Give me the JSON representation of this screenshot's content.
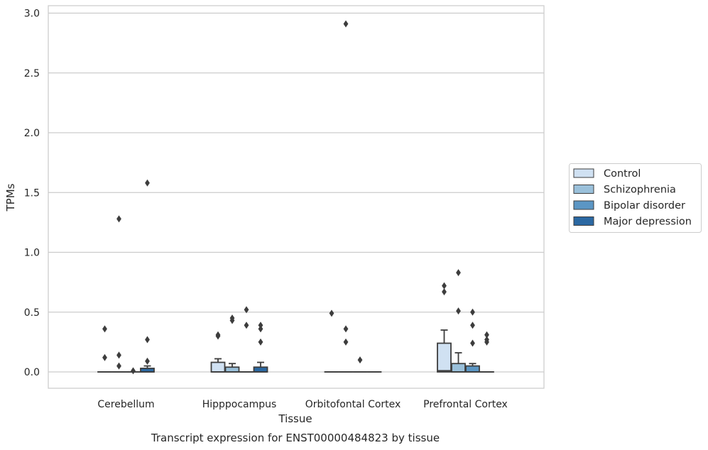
{
  "chart_data": {
    "type": "box",
    "title": "Transcript expression for ENST00000484823 by tissue",
    "xlabel": "Tissue",
    "ylabel": "TPMs",
    "ylim": [
      -0.14,
      3.05
    ],
    "yticks": [
      "0.0",
      "0.5",
      "1.0",
      "1.5",
      "2.0",
      "2.5",
      "3.0"
    ],
    "grid": true,
    "legend_position": "right",
    "categories": [
      "Cerebellum",
      "Hipppocampus",
      "Orbitofontal Cortex",
      "Prefrontal Cortex"
    ],
    "series": [
      {
        "name": "Control",
        "color": "#d0e1f2",
        "boxes": [
          {
            "q1": 0,
            "median": 0,
            "q3": 0,
            "whisker_low": 0,
            "whisker_high": 0,
            "outliers": [
              0.36,
              0.12
            ]
          },
          {
            "q1": 0,
            "median": 0,
            "q3": 0.08,
            "whisker_low": 0,
            "whisker_high": 0.11,
            "outliers": [
              0.31,
              0.3
            ]
          },
          {
            "q1": 0,
            "median": 0,
            "q3": 0,
            "whisker_low": 0,
            "whisker_high": 0,
            "outliers": [
              0.49
            ]
          },
          {
            "q1": 0,
            "median": 0.01,
            "q3": 0.24,
            "whisker_low": 0,
            "whisker_high": 0.35,
            "outliers": [
              0.72,
              0.67
            ]
          }
        ]
      },
      {
        "name": "Schizophrenia",
        "color": "#9ac0da",
        "boxes": [
          {
            "q1": 0,
            "median": 0,
            "q3": 0,
            "whisker_low": 0,
            "whisker_high": 0,
            "outliers": [
              1.28,
              0.14,
              0.05
            ]
          },
          {
            "q1": 0,
            "median": 0,
            "q3": 0.04,
            "whisker_low": 0,
            "whisker_high": 0.07,
            "outliers": [
              0.45,
              0.43
            ]
          },
          {
            "q1": 0,
            "median": 0,
            "q3": 0,
            "whisker_low": 0,
            "whisker_high": 0,
            "outliers": [
              2.91,
              0.36,
              0.25
            ]
          },
          {
            "q1": 0,
            "median": 0,
            "q3": 0.07,
            "whisker_low": 0,
            "whisker_high": 0.16,
            "outliers": [
              0.83,
              0.51
            ]
          }
        ]
      },
      {
        "name": "Bipolar disorder",
        "color": "#5b96c4",
        "boxes": [
          {
            "q1": 0,
            "median": 0,
            "q3": 0,
            "whisker_low": 0,
            "whisker_high": 0,
            "outliers": [
              0.01
            ]
          },
          {
            "q1": 0,
            "median": 0,
            "q3": 0,
            "whisker_low": 0,
            "whisker_high": 0,
            "outliers": [
              0.52,
              0.39
            ]
          },
          {
            "q1": 0,
            "median": 0,
            "q3": 0,
            "whisker_low": 0,
            "whisker_high": 0,
            "outliers": [
              0.1
            ]
          },
          {
            "q1": 0,
            "median": 0,
            "q3": 0.05,
            "whisker_low": 0,
            "whisker_high": 0.07,
            "outliers": [
              0.5,
              0.39,
              0.24
            ]
          }
        ]
      },
      {
        "name": "Major depression",
        "color": "#2b68a2",
        "boxes": [
          {
            "q1": 0,
            "median": 0,
            "q3": 0.03,
            "whisker_low": 0,
            "whisker_high": 0.05,
            "outliers": [
              1.58,
              0.27,
              0.09
            ]
          },
          {
            "q1": 0,
            "median": 0,
            "q3": 0.04,
            "whisker_low": 0,
            "whisker_high": 0.08,
            "outliers": [
              0.39,
              0.36,
              0.25
            ]
          },
          {
            "q1": 0,
            "median": 0,
            "q3": 0,
            "whisker_low": 0,
            "whisker_high": 0,
            "outliers": []
          },
          {
            "q1": 0,
            "median": 0,
            "q3": 0,
            "whisker_low": 0,
            "whisker_high": 0,
            "outliers": [
              0.31,
              0.27,
              0.25
            ]
          }
        ]
      }
    ]
  }
}
